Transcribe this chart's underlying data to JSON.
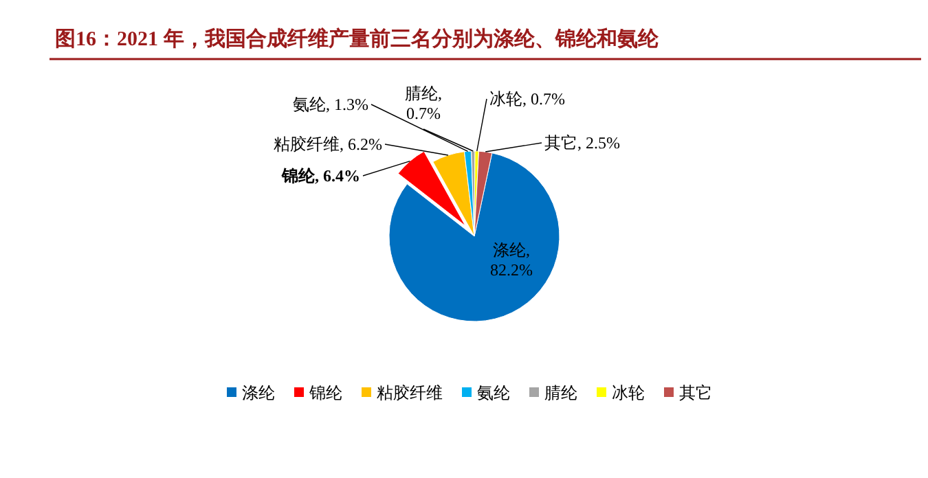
{
  "chart_data": {
    "type": "pie",
    "title": "图16：2021 年，我国合成纤维产量前三名分别为涤纶、锦纶和氨纶",
    "categories": [
      "涤纶",
      "锦纶",
      "粘胶纤维",
      "氨纶",
      "腈纶",
      "冰轮",
      "其它"
    ],
    "values": [
      82.2,
      6.4,
      6.2,
      1.3,
      0.7,
      0.7,
      2.5
    ],
    "colors": [
      "#0070c0",
      "#ff0000",
      "#ffc000",
      "#00b0f0",
      "#a5a5a5",
      "#ffff00",
      "#c0504d"
    ],
    "value_labels": [
      "涤纶,\n82.2%",
      "锦纶, 6.4%",
      "粘胶纤维, 6.2%",
      "氨纶, 1.3%",
      "腈纶,\n0.7%",
      "冰轮, 0.7%",
      "其它, 2.5%"
    ],
    "legend": "bottom"
  }
}
